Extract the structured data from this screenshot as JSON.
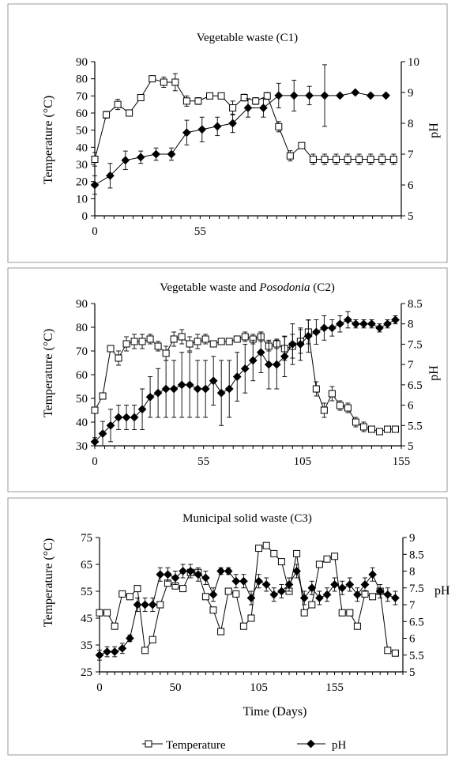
{
  "chart_data": [
    {
      "type": "line",
      "title": "Vegetable waste (C1)",
      "ylabel_left": "Temperature (°C)",
      "ylabel_right": "pH",
      "xlim": [
        0,
        160
      ],
      "ylim_left": [
        0,
        90
      ],
      "ylim_right": [
        5,
        10
      ],
      "xticks": [
        0,
        55
      ],
      "yticks_left": [
        0,
        10,
        20,
        30,
        40,
        50,
        60,
        70,
        80,
        90
      ],
      "yticks_right": [
        5,
        6,
        7,
        8,
        9,
        10
      ],
      "series": [
        {
          "name": "Temperature",
          "axis": "left",
          "marker": "open-square",
          "x": [
            0,
            6,
            12,
            18,
            24,
            30,
            36,
            42,
            48,
            54,
            60,
            66,
            72,
            78,
            84,
            90,
            96,
            102,
            108,
            114,
            120,
            126,
            132,
            138,
            144,
            150,
            156
          ],
          "y": [
            33,
            59,
            65,
            60,
            69,
            80,
            78,
            78,
            67,
            67,
            70,
            70,
            63,
            69,
            67,
            70,
            52,
            35,
            41,
            33,
            33,
            33,
            33,
            33,
            33,
            33,
            33
          ],
          "err": [
            4,
            2,
            3,
            1,
            1,
            1,
            3,
            5,
            3,
            2,
            1,
            1,
            4,
            2,
            2,
            2,
            3,
            3,
            1,
            3,
            3,
            3,
            3,
            3,
            3,
            3,
            3
          ]
        },
        {
          "name": "pH",
          "axis": "right",
          "marker": "filled-diamond",
          "x": [
            0,
            8,
            16,
            24,
            32,
            40,
            48,
            56,
            64,
            72,
            80,
            88,
            96,
            104,
            112,
            120,
            128,
            136,
            144,
            152
          ],
          "y": [
            6.0,
            6.3,
            6.8,
            6.9,
            7.0,
            7.0,
            7.7,
            7.8,
            7.9,
            8.0,
            8.5,
            8.5,
            8.9,
            8.9,
            8.9,
            8.9,
            8.9,
            9.0,
            8.9,
            8.9
          ],
          "err": [
            0.3,
            0.4,
            0.3,
            0.2,
            0.2,
            0.2,
            0.4,
            0.4,
            0.3,
            0.3,
            0.3,
            0.3,
            0.4,
            0.5,
            0.3,
            1.0,
            0.0,
            0.0,
            0.0,
            0.0
          ]
        }
      ]
    },
    {
      "type": "line",
      "title": "Vegetable waste and Posodonia (C2)",
      "title_plain": "Vegetable waste and ",
      "title_italic": "Posodonia",
      "title_suffix": " (C2)",
      "ylabel_left": "Temperature (°C)",
      "ylabel_right": "pH",
      "xlim": [
        0,
        155
      ],
      "ylim_left": [
        30,
        90
      ],
      "ylim_right": [
        5,
        8.5
      ],
      "xticks": [
        0,
        55,
        105,
        155
      ],
      "yticks_left": [
        30,
        40,
        50,
        60,
        70,
        80,
        90
      ],
      "yticks_right": [
        5,
        5.5,
        6,
        6.5,
        7,
        7.5,
        8,
        8.5
      ],
      "series": [
        {
          "name": "Temperature",
          "axis": "left",
          "marker": "open-square",
          "x": [
            0,
            4,
            8,
            12,
            16,
            20,
            24,
            28,
            32,
            36,
            40,
            44,
            48,
            52,
            56,
            60,
            64,
            68,
            72,
            76,
            80,
            84,
            88,
            92,
            96,
            100,
            104,
            108,
            112,
            116,
            120,
            124,
            128,
            132,
            136,
            140,
            144,
            148,
            152
          ],
          "y": [
            45,
            51,
            71,
            67,
            73,
            74,
            74,
            75,
            72,
            69,
            75,
            76,
            73,
            74,
            75,
            73,
            74,
            74,
            75,
            76,
            75,
            76,
            72,
            73,
            71,
            72,
            74,
            78,
            54,
            45,
            52,
            47,
            46,
            40,
            38,
            37,
            36,
            37,
            37
          ],
          "err": [
            1,
            1,
            1,
            3,
            3,
            3,
            3,
            2,
            2,
            3,
            3,
            3,
            3,
            3,
            2,
            1,
            1,
            1,
            1,
            2,
            2,
            2,
            2,
            2,
            5,
            5,
            5,
            5,
            3,
            3,
            3,
            2,
            2,
            2,
            2,
            1,
            1,
            1,
            1
          ]
        },
        {
          "name": "pH",
          "axis": "right",
          "marker": "filled-diamond",
          "x": [
            0,
            4,
            8,
            12,
            16,
            20,
            24,
            28,
            32,
            36,
            40,
            44,
            48,
            52,
            56,
            60,
            64,
            68,
            72,
            76,
            80,
            84,
            88,
            92,
            96,
            100,
            104,
            108,
            112,
            116,
            120,
            124,
            128,
            132,
            136,
            140,
            144,
            148,
            152
          ],
          "y": [
            5.1,
            5.3,
            5.5,
            5.7,
            5.7,
            5.7,
            5.9,
            6.2,
            6.3,
            6.4,
            6.4,
            6.5,
            6.5,
            6.4,
            6.4,
            6.6,
            6.3,
            6.4,
            6.7,
            6.9,
            7.1,
            7.3,
            7.0,
            7.0,
            7.2,
            7.5,
            7.5,
            7.7,
            7.8,
            7.9,
            7.9,
            8.0,
            8.1,
            8.0,
            8.0,
            8.0,
            7.9,
            8.0,
            8.1
          ],
          "err": [
            0.1,
            0.3,
            0.4,
            0.3,
            0.3,
            0.3,
            0.5,
            0.5,
            0.6,
            0.7,
            0.7,
            0.8,
            0.8,
            0.7,
            0.7,
            0.6,
            0.8,
            0.7,
            0.6,
            0.6,
            0.5,
            0.5,
            0.6,
            0.6,
            0.5,
            0.5,
            0.4,
            0.4,
            0.3,
            0.3,
            0.2,
            0.2,
            0.2,
            0.1,
            0.1,
            0.1,
            0.1,
            0.1,
            0.1
          ]
        }
      ]
    },
    {
      "type": "line",
      "title": "Municipal solid waste (C3)",
      "ylabel_left": "Temperature (°C)",
      "ylabel_right": "pH",
      "xlabel": "Time (Days)",
      "xlim": [
        0,
        200
      ],
      "ylim_left": [
        25,
        75
      ],
      "ylim_right": [
        5,
        9
      ],
      "xticks": [
        0,
        50,
        105,
        155
      ],
      "yticks_left": [
        25,
        35,
        45,
        55,
        65,
        75
      ],
      "yticks_right": [
        5,
        5.5,
        6,
        6.5,
        7,
        7.5,
        8,
        8.5,
        9
      ],
      "series": [
        {
          "name": "Temperature",
          "axis": "left",
          "marker": "open-square",
          "x": [
            0,
            5,
            10,
            15,
            20,
            25,
            30,
            35,
            40,
            45,
            50,
            55,
            60,
            65,
            70,
            75,
            80,
            85,
            90,
            95,
            100,
            105,
            110,
            115,
            120,
            125,
            130,
            135,
            140,
            145,
            150,
            155,
            160,
            165,
            170,
            175,
            180,
            185,
            190,
            195
          ],
          "y": [
            47,
            47,
            42,
            54,
            53,
            56,
            33,
            37,
            50,
            58,
            57,
            56,
            62,
            62,
            53,
            48,
            40,
            55,
            54,
            42,
            45,
            71,
            72,
            69,
            66,
            55,
            69,
            47,
            50,
            65,
            67,
            68,
            47,
            47,
            42,
            54,
            53,
            55,
            33,
            32
          ],
          "err": [
            0.5,
            0.5,
            0.5,
            0.5,
            0.5,
            0.5,
            0.5,
            0.5,
            0.5,
            0.5,
            0.5,
            0.5,
            0.5,
            0.5,
            0.5,
            0.5,
            0.5,
            0.5,
            0.5,
            0.5,
            0.5,
            0.5,
            0.5,
            0.5,
            0.5,
            0.5,
            0.5,
            0.5,
            0.5,
            0.5,
            0.5,
            0.5,
            0.5,
            0.5,
            0.5,
            0.5,
            0.5,
            0.5,
            0.5,
            0.5
          ]
        },
        {
          "name": "pH",
          "axis": "right",
          "marker": "filled-diamond",
          "x": [
            0,
            5,
            10,
            15,
            20,
            25,
            30,
            35,
            40,
            45,
            50,
            55,
            60,
            65,
            70,
            75,
            80,
            85,
            90,
            95,
            100,
            105,
            110,
            115,
            120,
            125,
            130,
            135,
            140,
            145,
            150,
            155,
            160,
            165,
            170,
            175,
            180,
            185,
            190,
            195
          ],
          "y": [
            5.5,
            5.6,
            5.6,
            5.7,
            6.0,
            7.0,
            7.0,
            7.0,
            7.9,
            7.9,
            7.8,
            8.0,
            8.0,
            7.9,
            7.8,
            7.3,
            8.0,
            8.0,
            7.7,
            7.7,
            7.2,
            7.7,
            7.6,
            7.3,
            7.4,
            7.6,
            8.0,
            7.2,
            7.5,
            7.2,
            7.3,
            7.6,
            7.5,
            7.6,
            7.3,
            7.6,
            7.9,
            7.4,
            7.3,
            7.2
          ],
          "err": [
            0.15,
            0.15,
            0.15,
            0.15,
            0.1,
            0.2,
            0.2,
            0.2,
            0.2,
            0.2,
            0.2,
            0.2,
            0.2,
            0.2,
            0.2,
            0.2,
            0.1,
            0.1,
            0.2,
            0.2,
            0.2,
            0.2,
            0.2,
            0.2,
            0.2,
            0.2,
            0.2,
            0.2,
            0.2,
            0.2,
            0.2,
            0.2,
            0.2,
            0.2,
            0.2,
            0.2,
            0.2,
            0.2,
            0.2,
            0.2
          ]
        }
      ]
    }
  ],
  "legend": {
    "temperature_label": "Temperature",
    "ph_label": "pH"
  },
  "colors": {
    "line": "#000000",
    "frame": "#9a9a9a",
    "background": "#ffffff"
  }
}
